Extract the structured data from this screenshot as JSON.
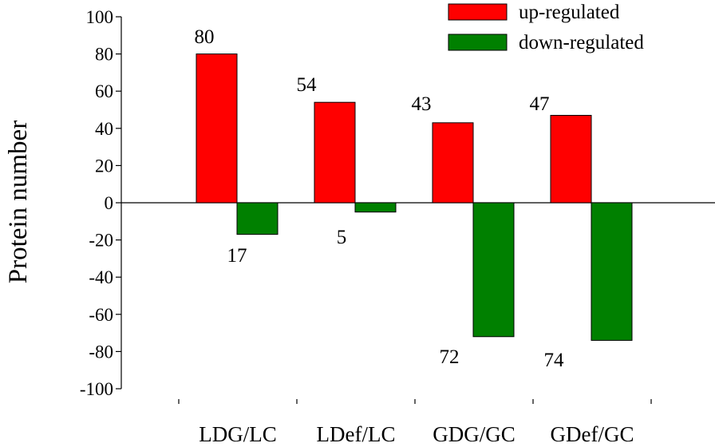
{
  "chart_data": {
    "type": "bar",
    "title": "",
    "xlabel": "",
    "ylabel": "Protein number",
    "ylim": [
      -100,
      100
    ],
    "ytick_step": 20,
    "categories": [
      "LDG/LC",
      "LDef/LC",
      "GDG/GC",
      "GDef/GC"
    ],
    "series": [
      {
        "name": "up-regulated",
        "color": "#ff0000",
        "values": [
          80,
          54,
          43,
          47
        ]
      },
      {
        "name": "down-regulated",
        "color": "#008000",
        "values": [
          -17,
          -5,
          -72,
          -74
        ]
      }
    ],
    "data_labels": [
      {
        "series": 0,
        "labels": [
          "80",
          "54",
          "43",
          "47"
        ]
      },
      {
        "series": 1,
        "labels": [
          "17",
          "5",
          "72",
          "74"
        ]
      }
    ],
    "grid": false,
    "legend_position": "top-right"
  }
}
